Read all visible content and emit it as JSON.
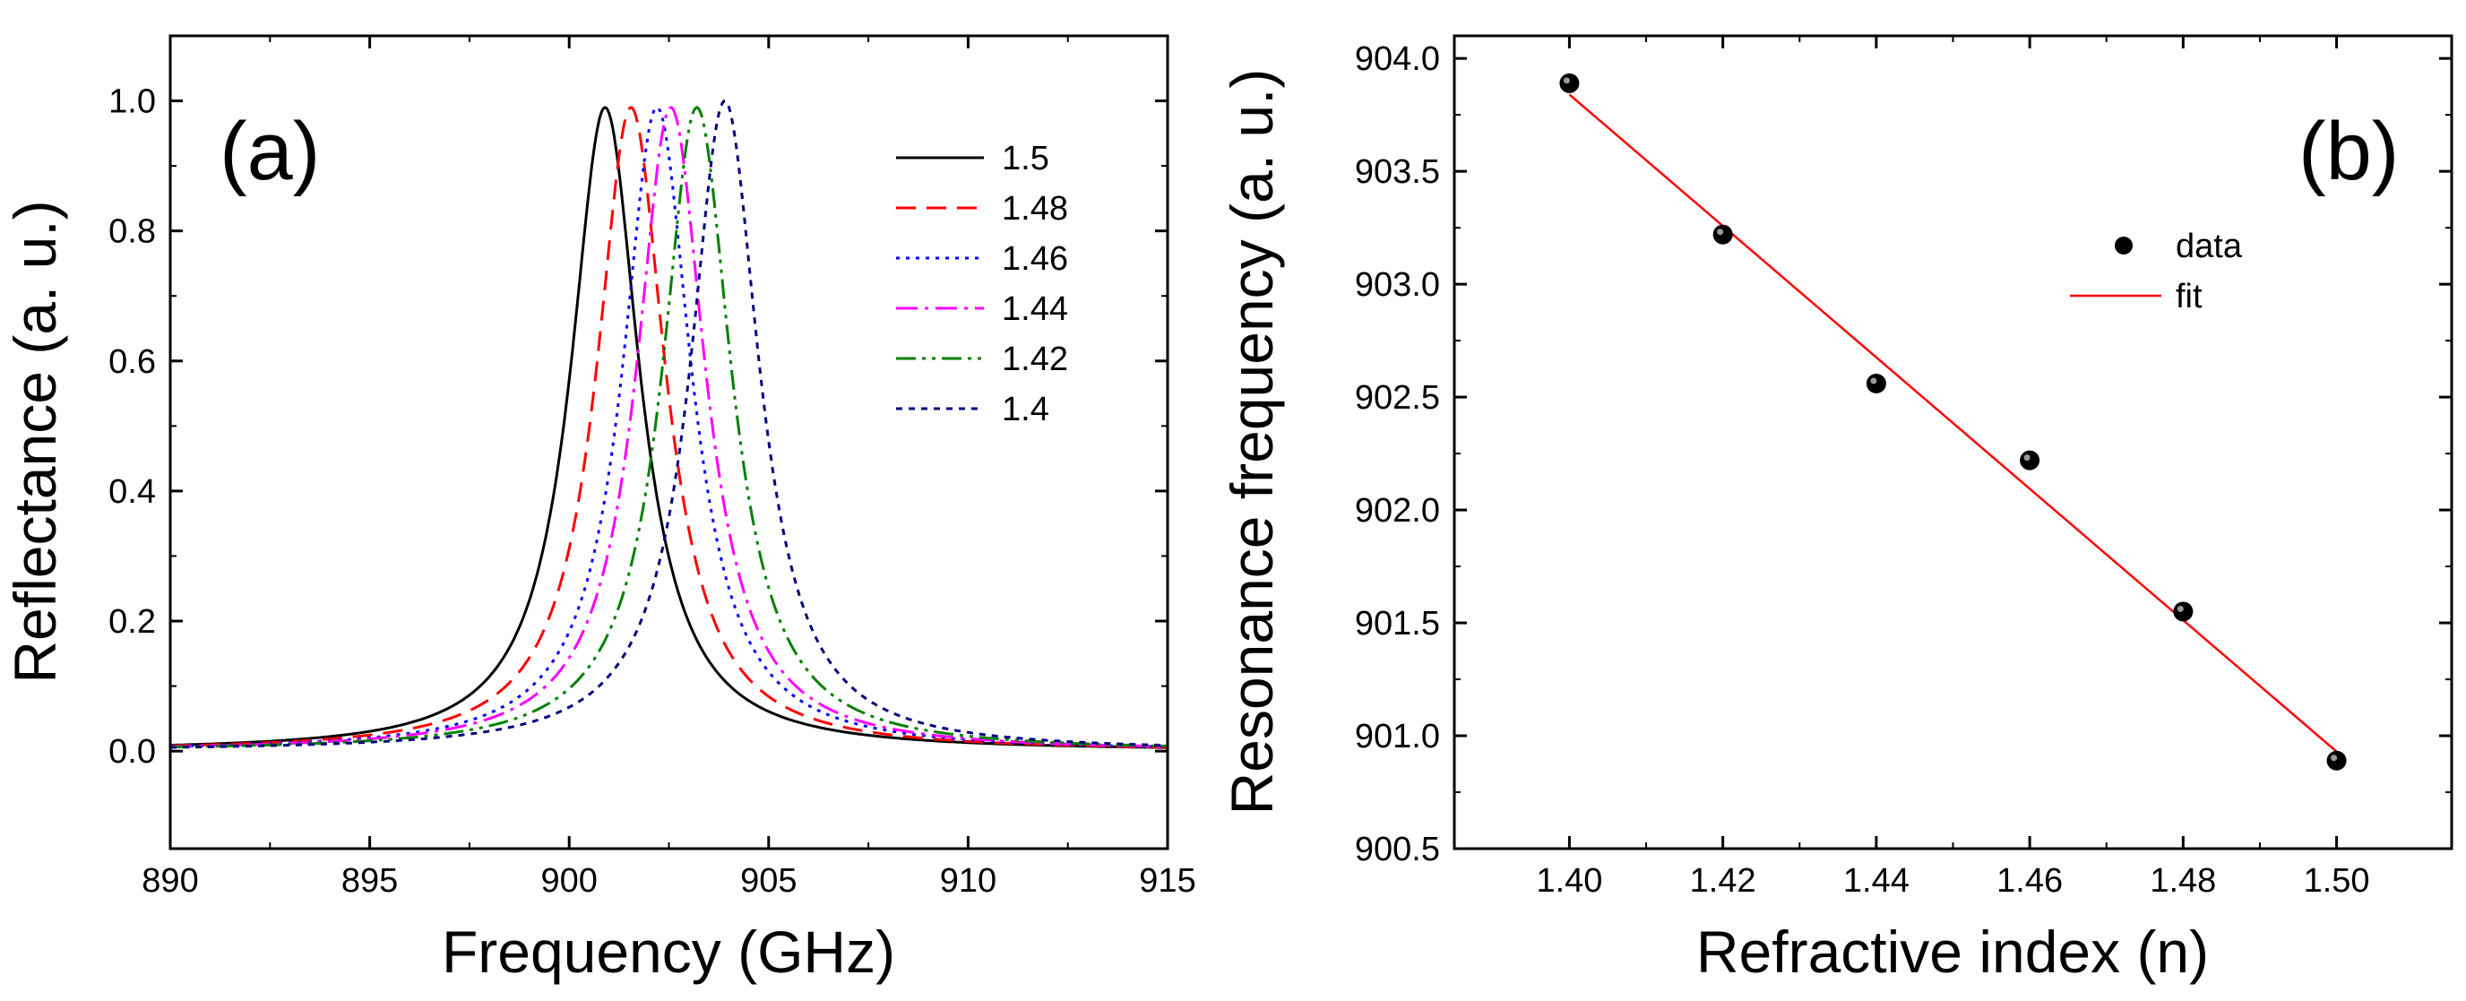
{
  "chart_data": [
    {
      "type": "line",
      "panel_label": "(a)",
      "title": "",
      "xlabel": "Frequency (GHz)",
      "ylabel": "Reflectance (a. u.)",
      "xlim": [
        890,
        915
      ],
      "ylim": [
        -0.15,
        1.1
      ],
      "xticks": [
        890,
        895,
        900,
        905,
        910,
        915
      ],
      "xtick_labels": [
        "890",
        "895",
        "900",
        "905",
        "910",
        "915"
      ],
      "yticks": [
        0.0,
        0.2,
        0.4,
        0.6,
        0.8,
        1.0
      ],
      "ytick_labels": [
        "0.0",
        "0.2",
        "0.4",
        "0.6",
        "0.8",
        "1.0"
      ],
      "grid": false,
      "legend_position": "top-right",
      "series": [
        {
          "name": "1.5",
          "label": "1.5",
          "peak_frequency": 900.9,
          "peak_reflectance": 0.99,
          "hwhm": 1.05,
          "color": "#000000",
          "dash": "solid"
        },
        {
          "name": "1.48",
          "label": "1.48",
          "peak_frequency": 901.55,
          "peak_reflectance": 0.99,
          "hwhm": 1.05,
          "color": "#ff0000",
          "dash": "dash"
        },
        {
          "name": "1.46",
          "label": "1.46",
          "peak_frequency": 902.2,
          "peak_reflectance": 0.99,
          "hwhm": 1.05,
          "color": "#0000ff",
          "dash": "dot"
        },
        {
          "name": "1.44",
          "label": "1.44",
          "peak_frequency": 902.55,
          "peak_reflectance": 0.99,
          "hwhm": 1.05,
          "color": "#ff00ff",
          "dash": "dashdot"
        },
        {
          "name": "1.42",
          "label": "1.42",
          "peak_frequency": 903.2,
          "peak_reflectance": 0.99,
          "hwhm": 1.05,
          "color": "#008000",
          "dash": "dashdotdot"
        },
        {
          "name": "1.4",
          "label": "1.4",
          "peak_frequency": 903.9,
          "peak_reflectance": 1.0,
          "hwhm": 1.05,
          "color": "#000080",
          "dash": "shortdash"
        }
      ]
    },
    {
      "type": "scatter",
      "panel_label": "(b)",
      "title": "",
      "xlabel": "Refractive index (n)",
      "ylabel": "Resonance frequency (a. u.)",
      "xlim": [
        1.385,
        1.515
      ],
      "ylim": [
        900.5,
        904.1
      ],
      "xticks": [
        1.4,
        1.42,
        1.44,
        1.46,
        1.48,
        1.5
      ],
      "xtick_labels": [
        "1.40",
        "1.42",
        "1.44",
        "1.46",
        "1.48",
        "1.50"
      ],
      "yticks": [
        900.5,
        901.0,
        901.5,
        902.0,
        902.5,
        903.0,
        903.5,
        904.0
      ],
      "ytick_labels": [
        "900.5",
        "901.0",
        "901.5",
        "902.0",
        "902.5",
        "903.0",
        "903.5",
        "904.0"
      ],
      "grid": false,
      "legend_position": "top-right",
      "series": [
        {
          "name": "data",
          "label": "data",
          "x": [
            1.4,
            1.42,
            1.44,
            1.46,
            1.48,
            1.5
          ],
          "y": [
            903.89,
            903.22,
            902.56,
            902.22,
            901.55,
            900.89
          ],
          "color": "#000000"
        },
        {
          "name": "fit",
          "label": "fit",
          "x": [
            1.4,
            1.5
          ],
          "y": [
            903.84,
            900.93
          ],
          "color": "#ff0000"
        }
      ]
    }
  ]
}
